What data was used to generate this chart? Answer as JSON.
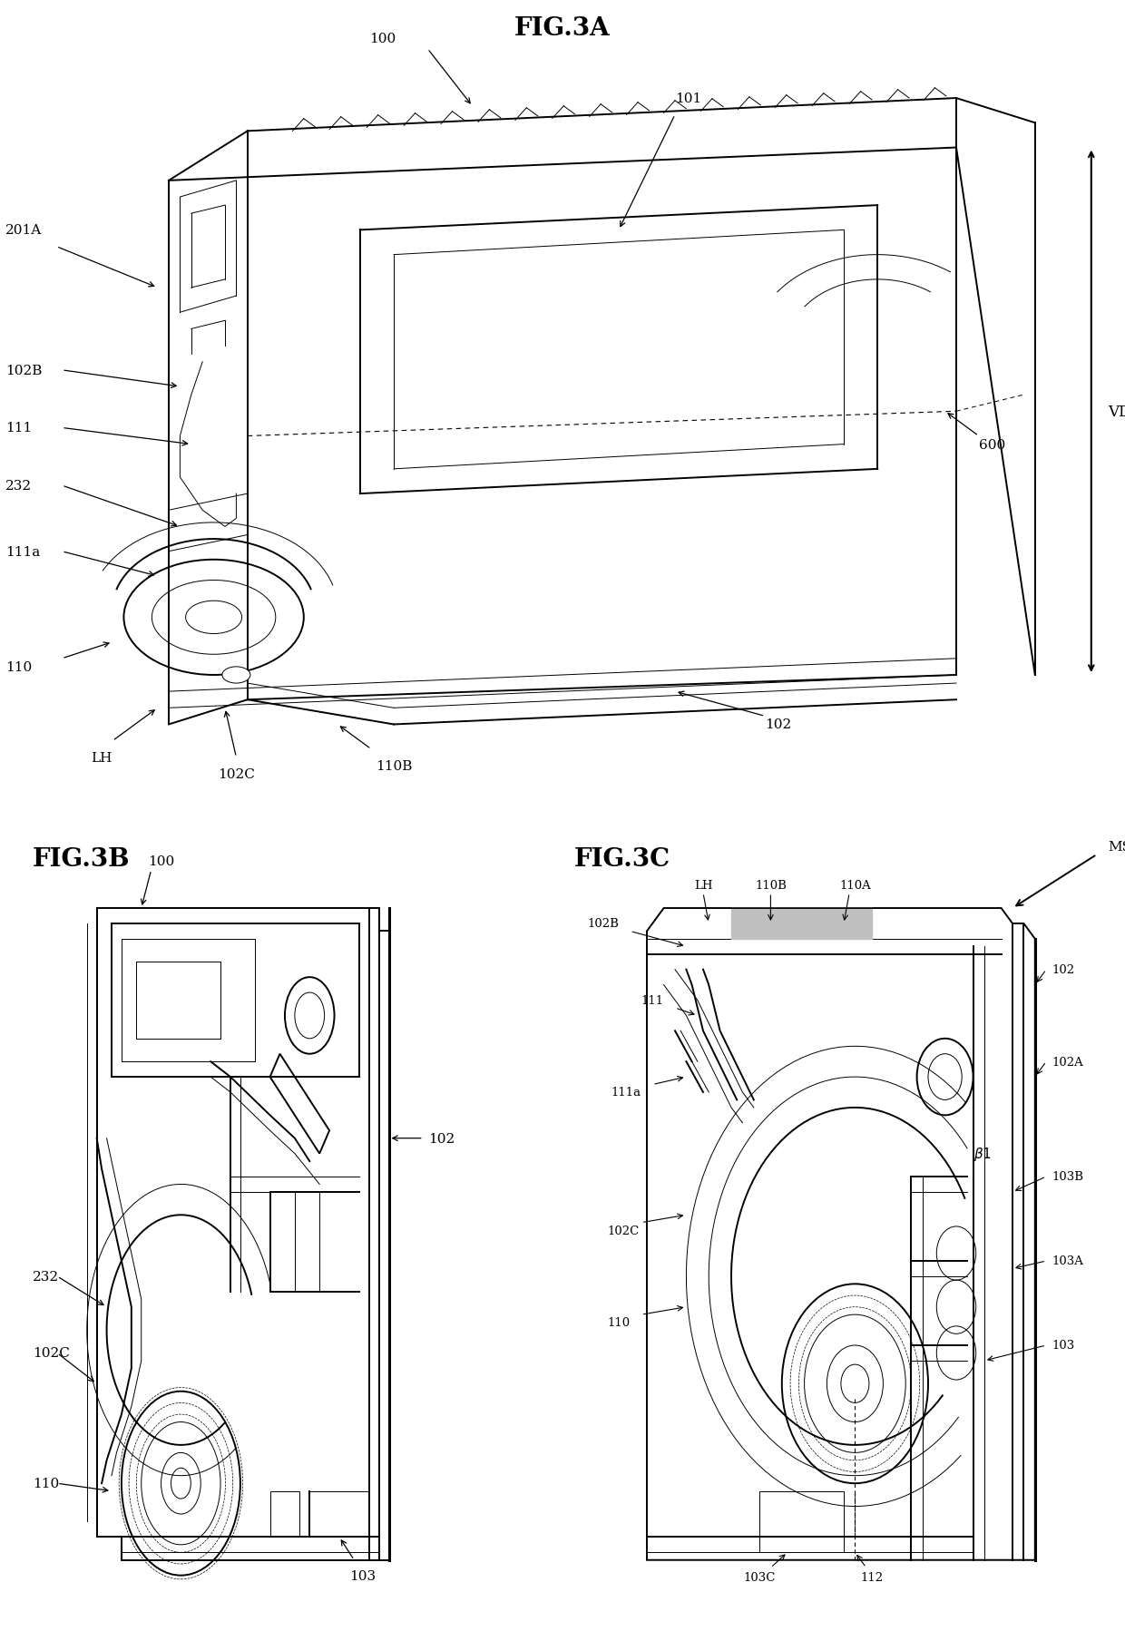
{
  "background_color": "#ffffff",
  "line_color": "#000000",
  "figsize": [
    12.4,
    17.99
  ],
  "dpi": 100,
  "fig3a_title": "FIG.3A",
  "fig3b_title": "FIG.3B",
  "fig3c_title": "FIG.3C",
  "lw_main": 1.4,
  "lw_thick": 2.2,
  "lw_thin": 0.7,
  "lw_med": 1.0,
  "font_title": 20,
  "font_label": 11,
  "font_small": 9.5
}
